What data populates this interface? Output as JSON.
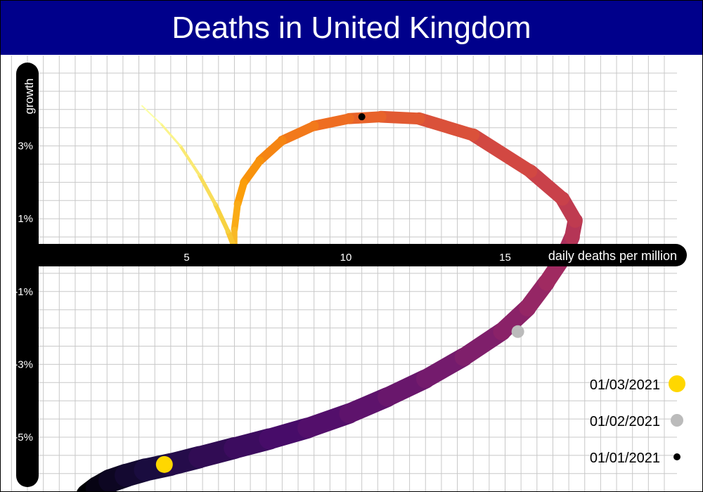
{
  "title": "Deaths in United Kingdom",
  "chart_data": {
    "type": "line",
    "title": "Deaths in United Kingdom",
    "xlabel": "daily deaths per million",
    "ylabel": "growth",
    "xlim": [
      -0.5,
      20
    ],
    "ylim": [
      -6,
      5
    ],
    "x_ticks": [
      5,
      10,
      15
    ],
    "x_tick_labels": [
      "5",
      "10",
      "15"
    ],
    "y_ticks": [
      3,
      1,
      -1,
      -3,
      -5
    ],
    "y_tick_labels": [
      "3%",
      "1%",
      "-1%",
      "-3%",
      "-5%"
    ],
    "grid": true,
    "legend_position": "bottom-right",
    "series": [
      {
        "x": [
          1.9,
          2.2,
          2.6,
          3.1,
          3.7,
          4.5,
          5.4,
          6.5,
          7.6,
          8.8,
          10.1,
          11.3,
          12.5,
          13.7,
          14.9,
          15.7,
          16.3,
          16.8,
          17.1,
          17.2,
          16.8,
          15.8,
          14.0,
          12.3,
          11.1,
          10.1,
          9.0,
          8.0,
          7.3,
          6.8,
          6.6,
          6.5,
          6.5,
          6.3,
          5.9,
          5.4,
          4.8,
          4.2,
          3.6
        ],
        "y": [
          -6.6,
          -6.4,
          -6.2,
          -6.05,
          -5.9,
          -5.75,
          -5.55,
          -5.3,
          -5.05,
          -4.75,
          -4.35,
          -3.9,
          -3.4,
          -2.8,
          -2.1,
          -1.45,
          -0.75,
          -0.1,
          0.5,
          0.95,
          1.55,
          2.3,
          3.3,
          3.75,
          3.8,
          3.75,
          3.55,
          3.15,
          2.6,
          2.0,
          1.4,
          0.7,
          0.2,
          0.65,
          1.4,
          2.2,
          3.0,
          3.6,
          4.1
        ]
      }
    ],
    "markers": [
      {
        "label": "01/01/2021",
        "x": 10.5,
        "y": 3.8,
        "color": "#000000",
        "size": "small"
      },
      {
        "label": "01/02/2021",
        "x": 15.4,
        "y": -2.1,
        "color": "#bbbbbb",
        "size": "medium"
      },
      {
        "label": "01/03/2021",
        "x": 4.3,
        "y": -5.75,
        "color": "#ffd700",
        "size": "large"
      }
    ],
    "line_colormap": [
      "#000004",
      "#1b0c41",
      "#4a0c6b",
      "#781c6d",
      "#a52c60",
      "#cf4446",
      "#ed6925",
      "#fb9b06",
      "#f7d13d",
      "#fcffa4"
    ],
    "legend": [
      {
        "label": "01/03/2021",
        "color": "#ffd700",
        "size": "large"
      },
      {
        "label": "01/02/2021",
        "color": "#bbbbbb",
        "size": "medium"
      },
      {
        "label": "01/01/2021",
        "color": "#000000",
        "size": "small"
      }
    ]
  }
}
